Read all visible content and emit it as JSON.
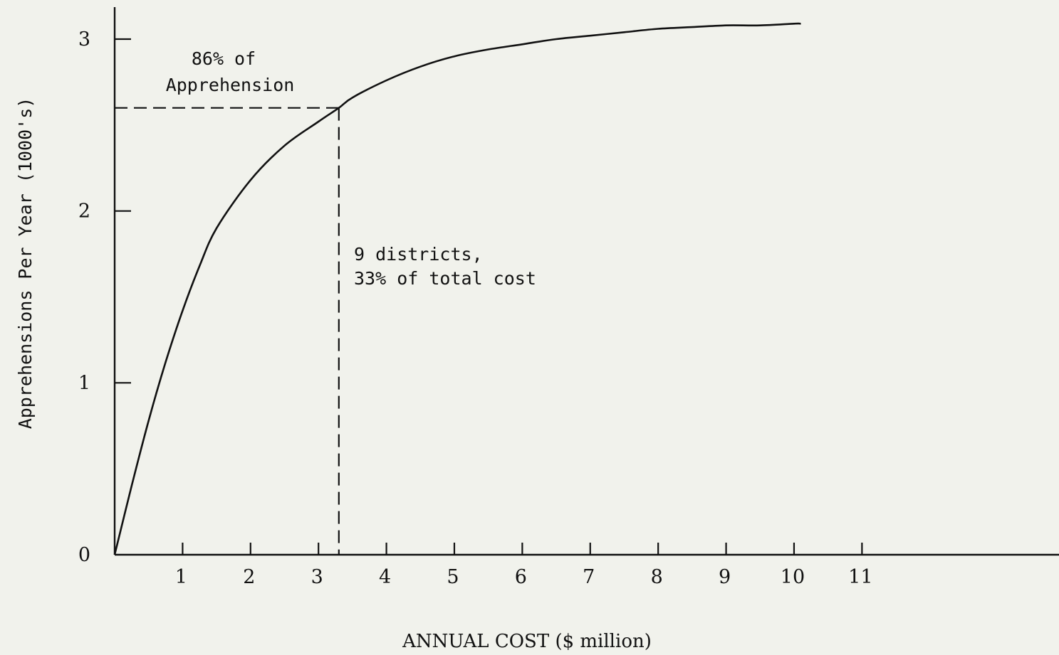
{
  "chart_data": {
    "type": "line",
    "xlabel": "ANNUAL COST ($ million)",
    "ylabel": "Apprehensions Per Year (1000's)",
    "x_ticks": [
      1,
      2,
      3,
      4,
      5,
      6,
      7,
      8,
      9,
      10,
      11
    ],
    "y_ticks": [
      0,
      1,
      2,
      3
    ],
    "xlim": [
      0,
      13.9
    ],
    "ylim": [
      0,
      3.2
    ],
    "grid": false,
    "series": [
      {
        "x": [
          0,
          0.25,
          0.5,
          0.75,
          1,
          1.25,
          1.5,
          2,
          2.5,
          3,
          3.3,
          3.5,
          4,
          4.5,
          5,
          5.5,
          6,
          6.5,
          7,
          7.5,
          8,
          8.5,
          9,
          9.5,
          10,
          10.1
        ],
        "y": [
          0,
          0.4,
          0.78,
          1.12,
          1.42,
          1.68,
          1.9,
          2.18,
          2.38,
          2.52,
          2.6,
          2.66,
          2.76,
          2.84,
          2.9,
          2.94,
          2.97,
          3.0,
          3.02,
          3.04,
          3.06,
          3.07,
          3.08,
          3.08,
          3.09,
          3.09
        ]
      }
    ],
    "marker": {
      "x": 3.3,
      "y": 2.6
    },
    "annotations": {
      "apprehension_line1": "86% of",
      "apprehension_line2": "Apprehension",
      "districts_line1": "9 districts,",
      "districts_line2": "33% of total cost"
    }
  }
}
